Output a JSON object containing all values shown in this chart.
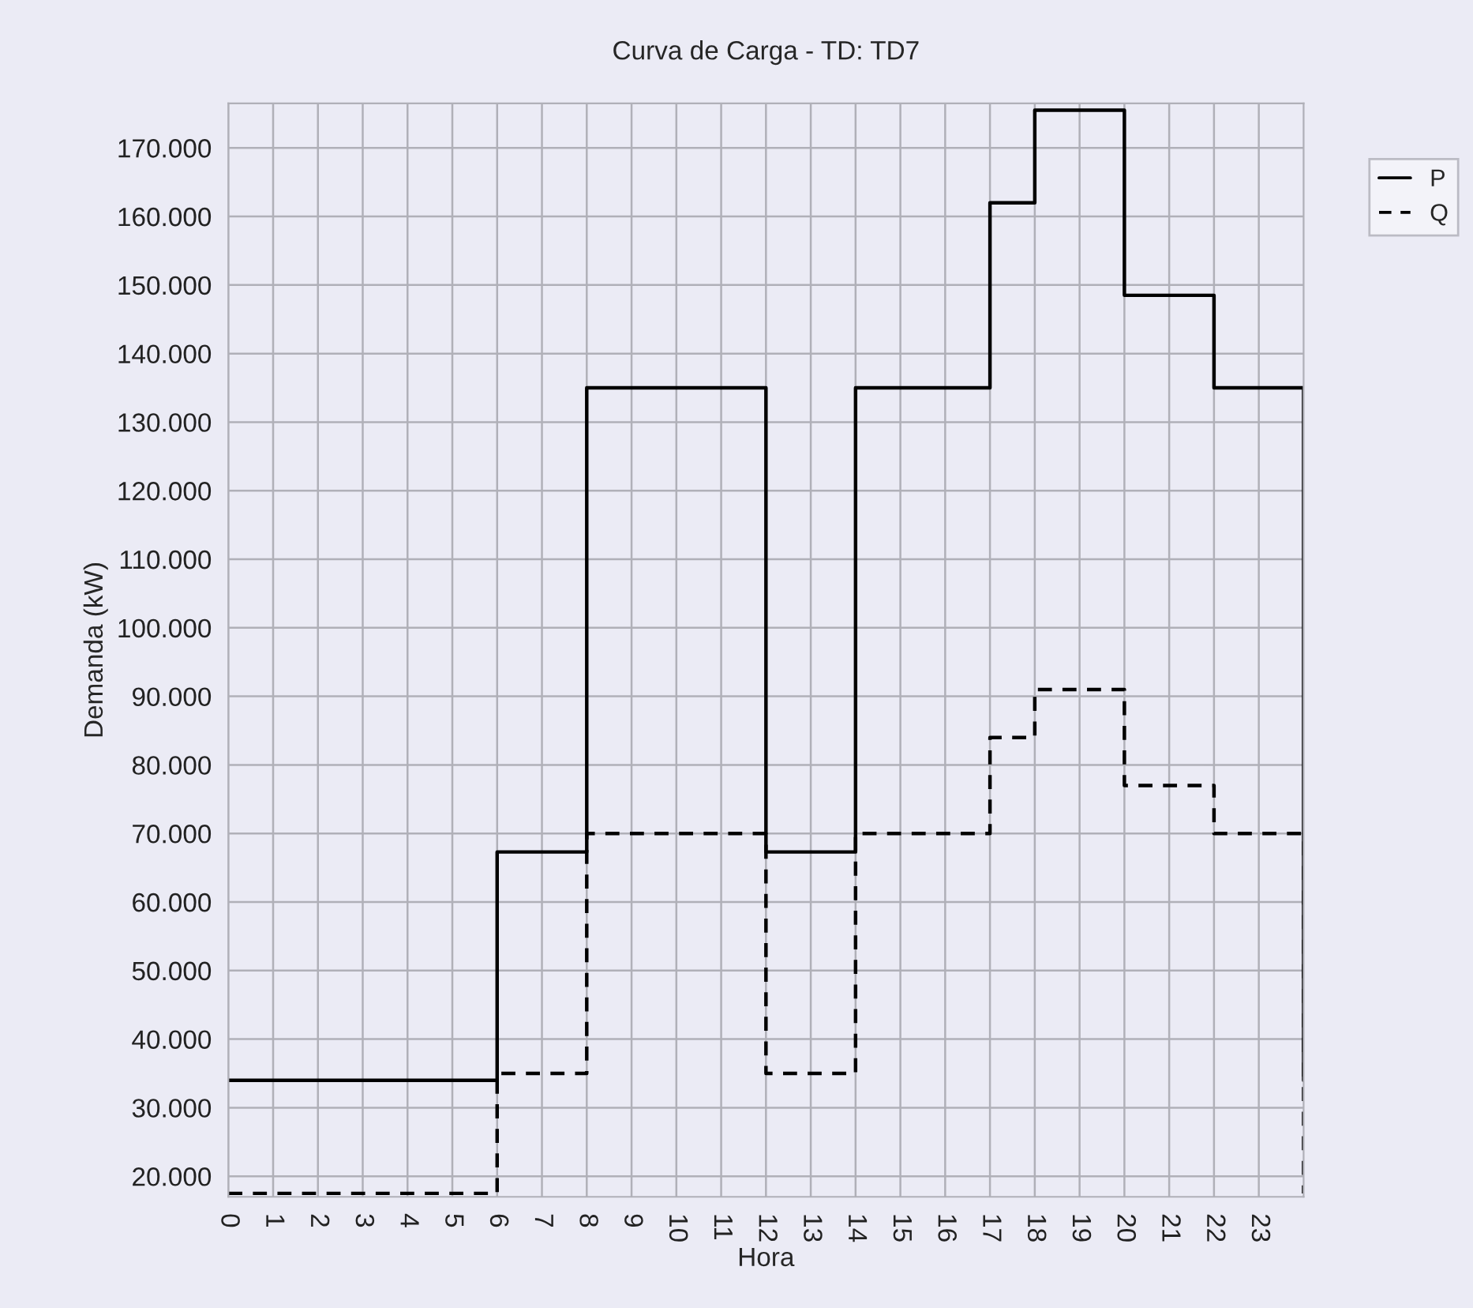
{
  "chart_data": {
    "type": "step",
    "title": "Curva de Carga - TD: TD7",
    "xlabel": "Hora",
    "ylabel": "Demanda (kW)",
    "x": [
      0,
      1,
      2,
      3,
      4,
      5,
      6,
      7,
      8,
      9,
      10,
      11,
      12,
      13,
      14,
      15,
      16,
      17,
      18,
      19,
      20,
      21,
      22,
      23,
      24
    ],
    "series": [
      {
        "name": "P",
        "color": "#000000",
        "line_style": "solid",
        "values": [
          34000,
          34000,
          34000,
          34000,
          34000,
          34000,
          67300,
          67300,
          135000,
          135000,
          135000,
          135000,
          67300,
          67300,
          135000,
          135000,
          135000,
          162000,
          175500,
          175500,
          148500,
          148500,
          135000,
          135000,
          34000
        ]
      },
      {
        "name": "Q",
        "color": "#000000",
        "line_style": "dashed",
        "values": [
          17500,
          17500,
          17500,
          17500,
          17500,
          17500,
          35000,
          35000,
          70000,
          70000,
          70000,
          70000,
          35000,
          35000,
          70000,
          70000,
          70000,
          84000,
          91000,
          91000,
          77000,
          77000,
          70000,
          70000,
          17500
        ]
      }
    ],
    "xlim": [
      0,
      24
    ],
    "xticks": [
      0,
      1,
      2,
      3,
      4,
      5,
      6,
      7,
      8,
      9,
      10,
      11,
      12,
      13,
      14,
      15,
      16,
      17,
      18,
      19,
      20,
      21,
      22,
      23
    ],
    "ylim": [
      17000,
      176500
    ],
    "yticks": [
      {
        "value": 20000,
        "label": "20.000"
      },
      {
        "value": 30000,
        "label": "30.000"
      },
      {
        "value": 40000,
        "label": "40.000"
      },
      {
        "value": 50000,
        "label": "50.000"
      },
      {
        "value": 60000,
        "label": "60.000"
      },
      {
        "value": 70000,
        "label": "70.000"
      },
      {
        "value": 80000,
        "label": "80.000"
      },
      {
        "value": 90000,
        "label": "90.000"
      },
      {
        "value": 100000,
        "label": "100.000"
      },
      {
        "value": 110000,
        "label": "110.000"
      },
      {
        "value": 120000,
        "label": "120.000"
      },
      {
        "value": 130000,
        "label": "130.000"
      },
      {
        "value": 140000,
        "label": "140.000"
      },
      {
        "value": 150000,
        "label": "150.000"
      },
      {
        "value": 160000,
        "label": "160.000"
      },
      {
        "value": 170000,
        "label": "170.000"
      }
    ],
    "grid": true,
    "legend": "top right",
    "marker": "none"
  }
}
